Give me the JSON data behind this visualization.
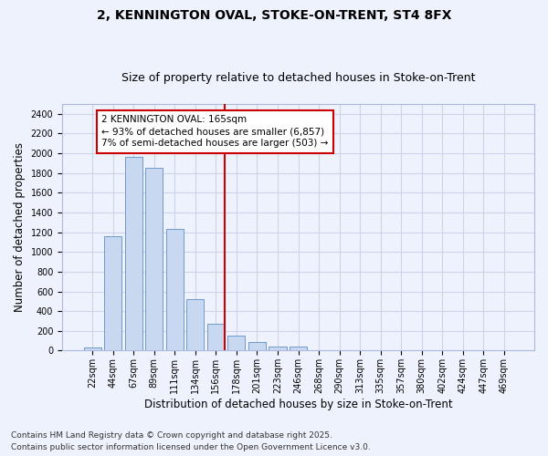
{
  "title": "2, KENNINGTON OVAL, STOKE-ON-TRENT, ST4 8FX",
  "subtitle": "Size of property relative to detached houses in Stoke-on-Trent",
  "xlabel": "Distribution of detached houses by size in Stoke-on-Trent",
  "ylabel": "Number of detached properties",
  "categories": [
    "22sqm",
    "44sqm",
    "67sqm",
    "89sqm",
    "111sqm",
    "134sqm",
    "156sqm",
    "178sqm",
    "201sqm",
    "223sqm",
    "246sqm",
    "268sqm",
    "290sqm",
    "313sqm",
    "335sqm",
    "357sqm",
    "380sqm",
    "402sqm",
    "424sqm",
    "447sqm",
    "469sqm"
  ],
  "values": [
    28,
    1160,
    1960,
    1850,
    1230,
    520,
    275,
    155,
    90,
    45,
    40,
    5,
    2,
    2,
    1,
    1,
    1,
    1,
    1,
    1,
    1
  ],
  "bar_color": "#c8d8f0",
  "bar_edge_color": "#7099c8",
  "vline_color": "#cc0000",
  "vline_x_index": 6.41,
  "annotation_line1": "2 KENNINGTON OVAL: 165sqm",
  "annotation_line2": "← 93% of detached houses are smaller (6,857)",
  "annotation_line3": "7% of semi-detached houses are larger (503) →",
  "annotation_box_color": "#ffffff",
  "annotation_box_edge": "#cc0000",
  "ylim": [
    0,
    2500
  ],
  "yticks": [
    0,
    200,
    400,
    600,
    800,
    1000,
    1200,
    1400,
    1600,
    1800,
    2000,
    2200,
    2400
  ],
  "footer_line1": "Contains HM Land Registry data © Crown copyright and database right 2025.",
  "footer_line2": "Contains public sector information licensed under the Open Government Licence v3.0.",
  "bg_color": "#eef2fc",
  "grid_color": "#ccd4ec",
  "title_fontsize": 10,
  "subtitle_fontsize": 9,
  "axis_label_fontsize": 8.5,
  "tick_fontsize": 7,
  "annot_fontsize": 7.5,
  "footer_fontsize": 6.5
}
